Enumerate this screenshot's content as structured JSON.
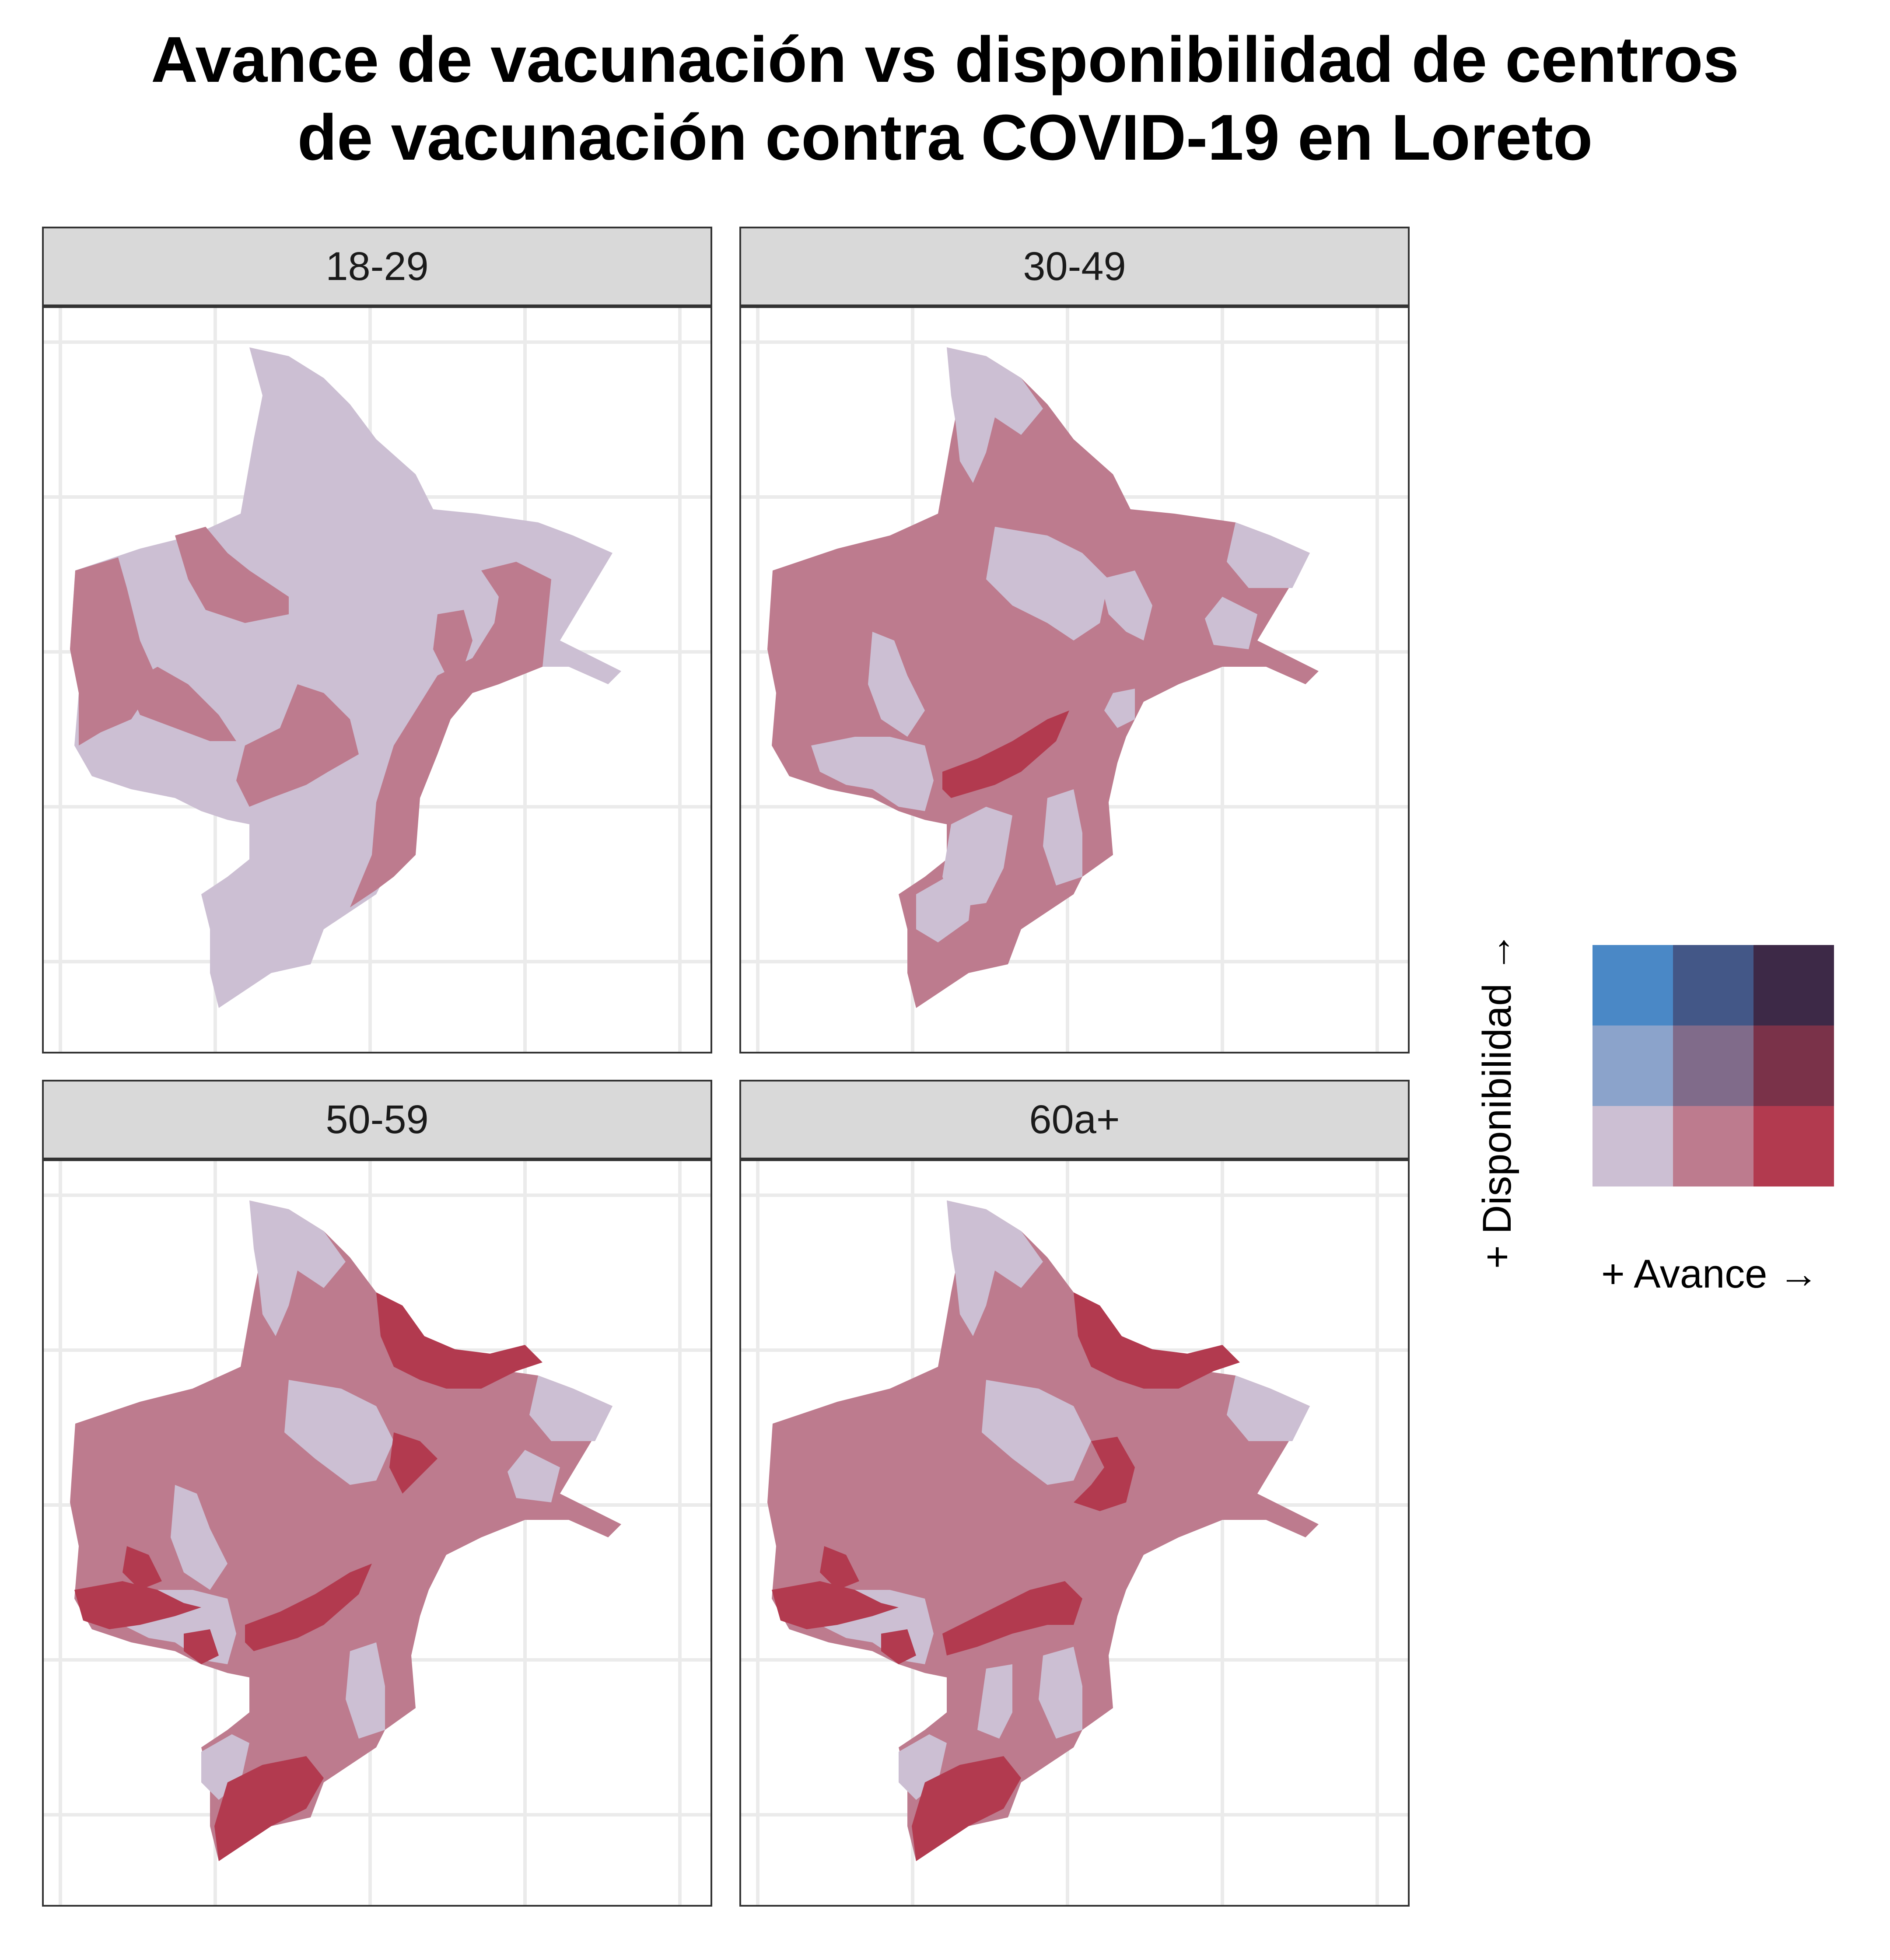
{
  "title": {
    "line1": "Avance de vacunación vs disponibilidad de centros",
    "line2": "de vacunación contra COVID-19 en Loreto"
  },
  "palette": {
    "low_low": "#ccbfd3",
    "high_avance_low_disp": "#bd7b8e",
    "very_high_avance_low_disp": "#b23a4f",
    "grid": "#ebebeb"
  },
  "panels": [
    {
      "label": "18-29",
      "regions": [
        {
          "id": "r1",
          "class": "mid"
        },
        {
          "id": "r2",
          "class": "mid"
        },
        {
          "id": "r3",
          "class": "mid"
        },
        {
          "id": "r4",
          "class": "mid"
        },
        {
          "id": "r5",
          "class": "mid"
        }
      ]
    },
    {
      "label": "30-49",
      "regions": [
        {
          "id": "r1",
          "class": "mid"
        },
        {
          "id": "r2",
          "class": "high"
        }
      ]
    },
    {
      "label": "50-59",
      "regions": [
        {
          "id": "r1",
          "class": "mid"
        },
        {
          "id": "r2",
          "class": "high"
        }
      ]
    },
    {
      "label": "60a+",
      "regions": [
        {
          "id": "r1",
          "class": "mid"
        },
        {
          "id": "r2",
          "class": "high"
        }
      ]
    }
  ],
  "legend": {
    "x_label": "+ Avance  →",
    "y_label": "+ Disponibilidad  →",
    "grid_colors": [
      [
        "#4a88c6",
        "#435787",
        "#3d2947"
      ],
      [
        "#8ba3cb",
        "#806b8a",
        "#7a3249"
      ],
      [
        "#ccbfd3",
        "#bd7b8e",
        "#b23a4f"
      ]
    ]
  }
}
